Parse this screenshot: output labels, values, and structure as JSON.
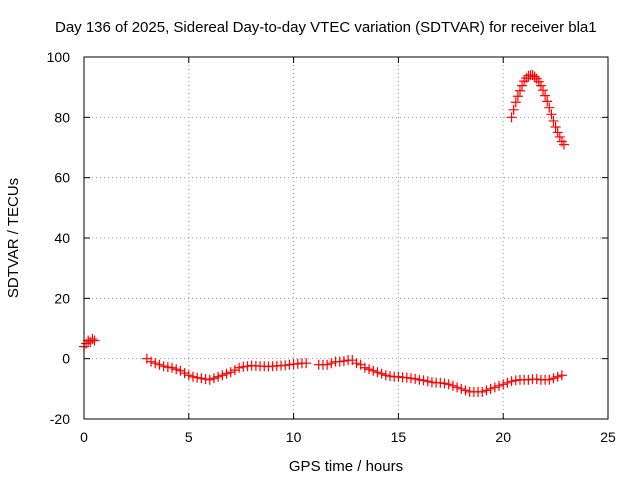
{
  "chart_data": {
    "type": "scatter",
    "title": "Day 136 of 2025, Sidereal Day-to-day VTEC variation (SDTVAR) for receiver bla1",
    "xlabel": "GPS time / hours",
    "ylabel": "SDTVAR / TECUs",
    "xlim": [
      0,
      25
    ],
    "ylim": [
      -20,
      100
    ],
    "xticks": [
      0,
      5,
      10,
      15,
      20,
      25
    ],
    "yticks": [
      -20,
      0,
      20,
      40,
      60,
      80,
      100
    ],
    "xtick_labels": [
      "0",
      "5",
      "10",
      "15",
      "20",
      "25"
    ],
    "ytick_labels": [
      "-20",
      "0",
      "20",
      "40",
      "60",
      "80",
      "100"
    ],
    "grid": true,
    "marker": "+",
    "color": "#ff0000",
    "series": [
      {
        "name": "segment-1",
        "x": [
          0.0,
          0.1,
          0.2,
          0.3,
          0.4,
          0.5
        ],
        "y": [
          4.0,
          5.0,
          6.0,
          5.5,
          6.5,
          6.0
        ]
      },
      {
        "name": "segment-2",
        "x": [
          3.0,
          3.2,
          3.4,
          3.6,
          3.8,
          4.0,
          4.2,
          4.4,
          4.6,
          4.8,
          5.0,
          5.2,
          5.4,
          5.6,
          5.8,
          6.0,
          6.2,
          6.4,
          6.6,
          6.8,
          7.0,
          7.2,
          7.4,
          7.6,
          7.8,
          8.0,
          8.2,
          8.4,
          8.6,
          8.8,
          9.0,
          9.2,
          9.4,
          9.6,
          9.8,
          10.0,
          10.2,
          10.4,
          10.6
        ],
        "y": [
          0.0,
          -1.0,
          -1.5,
          -2.0,
          -2.5,
          -2.8,
          -3.0,
          -3.5,
          -4.0,
          -4.8,
          -5.5,
          -6.0,
          -6.3,
          -6.5,
          -6.8,
          -7.0,
          -6.5,
          -6.0,
          -5.5,
          -5.0,
          -4.5,
          -3.8,
          -3.0,
          -2.7,
          -2.5,
          -2.3,
          -2.4,
          -2.5,
          -2.5,
          -2.6,
          -2.5,
          -2.4,
          -2.3,
          -2.2,
          -2.0,
          -1.8,
          -1.7,
          -1.5,
          -1.5
        ]
      },
      {
        "name": "segment-3",
        "x": [
          11.2,
          11.4,
          11.6,
          11.8,
          12.0,
          12.2,
          12.4,
          12.6,
          12.8,
          13.0,
          13.2,
          13.4,
          13.6,
          13.8,
          14.0,
          14.2,
          14.4,
          14.6,
          14.8,
          15.0,
          15.2,
          15.4,
          15.6,
          15.8,
          16.0,
          16.2,
          16.4,
          16.6,
          16.8,
          17.0,
          17.2,
          17.4,
          17.6,
          17.8,
          18.0,
          18.2,
          18.4,
          18.6,
          18.8,
          19.0,
          19.2,
          19.4,
          19.6,
          19.8,
          20.0,
          20.2,
          20.4,
          20.6,
          20.8,
          21.0,
          21.2,
          21.4,
          21.6,
          21.8,
          22.0,
          22.2,
          22.4,
          22.6,
          22.8
        ],
        "y": [
          -2.0,
          -2.0,
          -2.0,
          -1.5,
          -1.0,
          -1.0,
          -0.8,
          -0.5,
          -0.5,
          -1.5,
          -2.0,
          -3.0,
          -3.5,
          -4.0,
          -4.5,
          -5.0,
          -5.5,
          -5.8,
          -6.0,
          -6.0,
          -6.2,
          -6.3,
          -6.5,
          -6.7,
          -7.0,
          -7.2,
          -7.5,
          -7.8,
          -8.0,
          -8.0,
          -8.2,
          -8.5,
          -9.0,
          -9.5,
          -10.0,
          -10.5,
          -11.0,
          -11.0,
          -11.0,
          -11.0,
          -10.5,
          -10.0,
          -9.5,
          -9.0,
          -8.5,
          -8.0,
          -7.5,
          -7.2,
          -7.0,
          -7.0,
          -7.0,
          -6.8,
          -6.8,
          -7.0,
          -7.0,
          -7.0,
          -6.5,
          -6.0,
          -5.5
        ]
      },
      {
        "name": "segment-4",
        "x": [
          20.4,
          20.5,
          20.6,
          20.7,
          20.8,
          20.9,
          21.0,
          21.1,
          21.2,
          21.3,
          21.4,
          21.5,
          21.6,
          21.7,
          21.8,
          21.9,
          22.0,
          22.1,
          22.2,
          22.3,
          22.4,
          22.5,
          22.6,
          22.7,
          22.8,
          22.9
        ],
        "y": [
          80.0,
          82.5,
          85.0,
          87.0,
          88.8,
          90.5,
          92.0,
          93.0,
          93.8,
          94.0,
          94.0,
          93.5,
          92.8,
          91.8,
          90.5,
          89.0,
          87.2,
          85.3,
          83.2,
          81.0,
          78.8,
          76.8,
          75.0,
          73.5,
          72.0,
          71.0
        ]
      }
    ]
  }
}
